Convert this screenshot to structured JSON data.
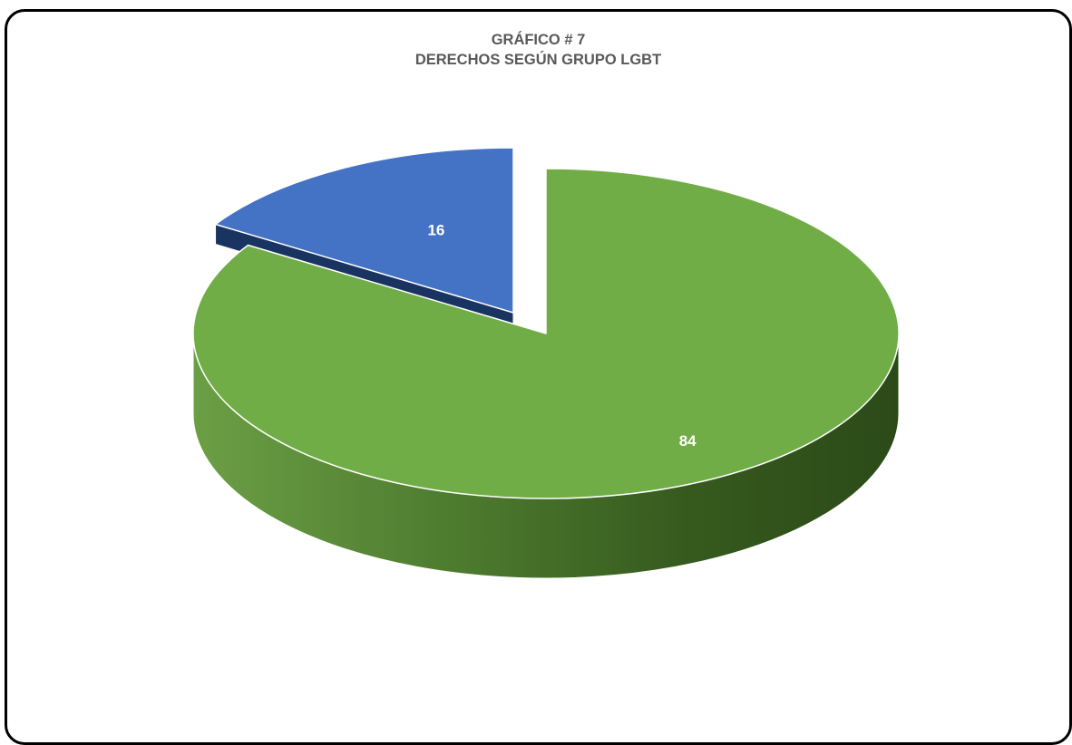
{
  "chart_data": {
    "type": "pie",
    "style": "3d-exploded",
    "title": "GRÁFICO # 7",
    "subtitle": "DERECHOS SEGÚN GRUPO LGBT",
    "categories": [
      "",
      ""
    ],
    "values": [
      16,
      84
    ],
    "data_labels": [
      "16",
      "84"
    ],
    "colors": [
      "#4472C4",
      "#70AD47"
    ],
    "legend": "none"
  }
}
